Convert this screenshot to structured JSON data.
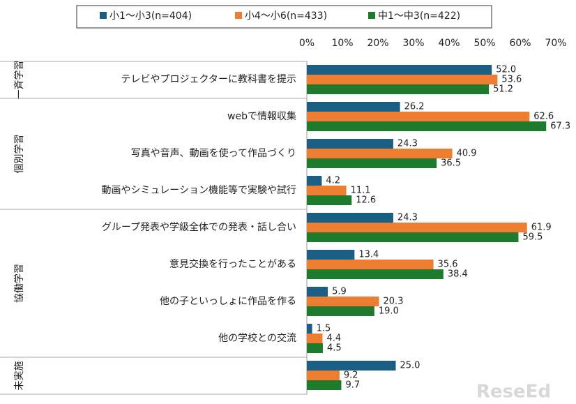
{
  "chart_data": {
    "type": "bar",
    "orientation": "horizontal",
    "category_groups": [
      {
        "name": "一斉学習",
        "categories": [
          "テレビやプロジェクターに教科書を提示"
        ]
      },
      {
        "name": "個別学習",
        "categories": [
          "webで情報収集",
          "写真や音声、動画を使って作品づくり",
          "動画やシミュレーション機能等で実験や試行"
        ]
      },
      {
        "name": "協働学習",
        "categories": [
          "グループ発表や学級全体での発表・話し合い",
          "意見交換を行ったことがある",
          "他の子といっしょに作品を作る",
          "他の学校との交流"
        ]
      },
      {
        "name": "未実施",
        "categories": [
          ""
        ]
      }
    ],
    "series": [
      {
        "name": "小1～小3(n=404)",
        "color": "#1b5e83",
        "values": [
          52,
          26.2,
          24.3,
          4.2,
          24.3,
          13.4,
          5.9,
          1.5,
          25
        ],
        "value_labels": [
          "52.0",
          "26.2",
          "24.3",
          "4.2",
          "24.3",
          "13.4",
          "5.9",
          "1.5",
          "25.0"
        ]
      },
      {
        "name": "小4～小6(n=433)",
        "color": "#ed7d31",
        "values": [
          53.6,
          62.6,
          40.9,
          11.1,
          61.9,
          35.6,
          20.3,
          4.4,
          9.2
        ],
        "value_labels": [
          "53.6",
          "62.6",
          "40.9",
          "11.1",
          "61.9",
          "35.6",
          "20.3",
          "4.4",
          "9.2"
        ]
      },
      {
        "name": "中1～中3(n=422)",
        "color": "#1e7b2e",
        "values": [
          51.2,
          67.3,
          36.5,
          12.6,
          59.5,
          38.4,
          19,
          4.5,
          9.7
        ],
        "value_labels": [
          "51.2",
          "67.3",
          "36.5",
          "12.6",
          "59.5",
          "38.4",
          "19.0",
          "4.5",
          "9.7"
        ]
      }
    ],
    "xlim": [
      0,
      70
    ],
    "xticks": [
      {
        "value": 0,
        "label": "0%"
      },
      {
        "value": 10,
        "label": "10%"
      },
      {
        "value": 20,
        "label": "20%"
      },
      {
        "value": 30,
        "label": "30%"
      },
      {
        "value": 40,
        "label": "40%"
      },
      {
        "value": 50,
        "label": "50%"
      },
      {
        "value": 60,
        "label": "60%"
      },
      {
        "value": 70,
        "label": "70%"
      }
    ],
    "legend": "top",
    "watermark": "ReseEd"
  }
}
